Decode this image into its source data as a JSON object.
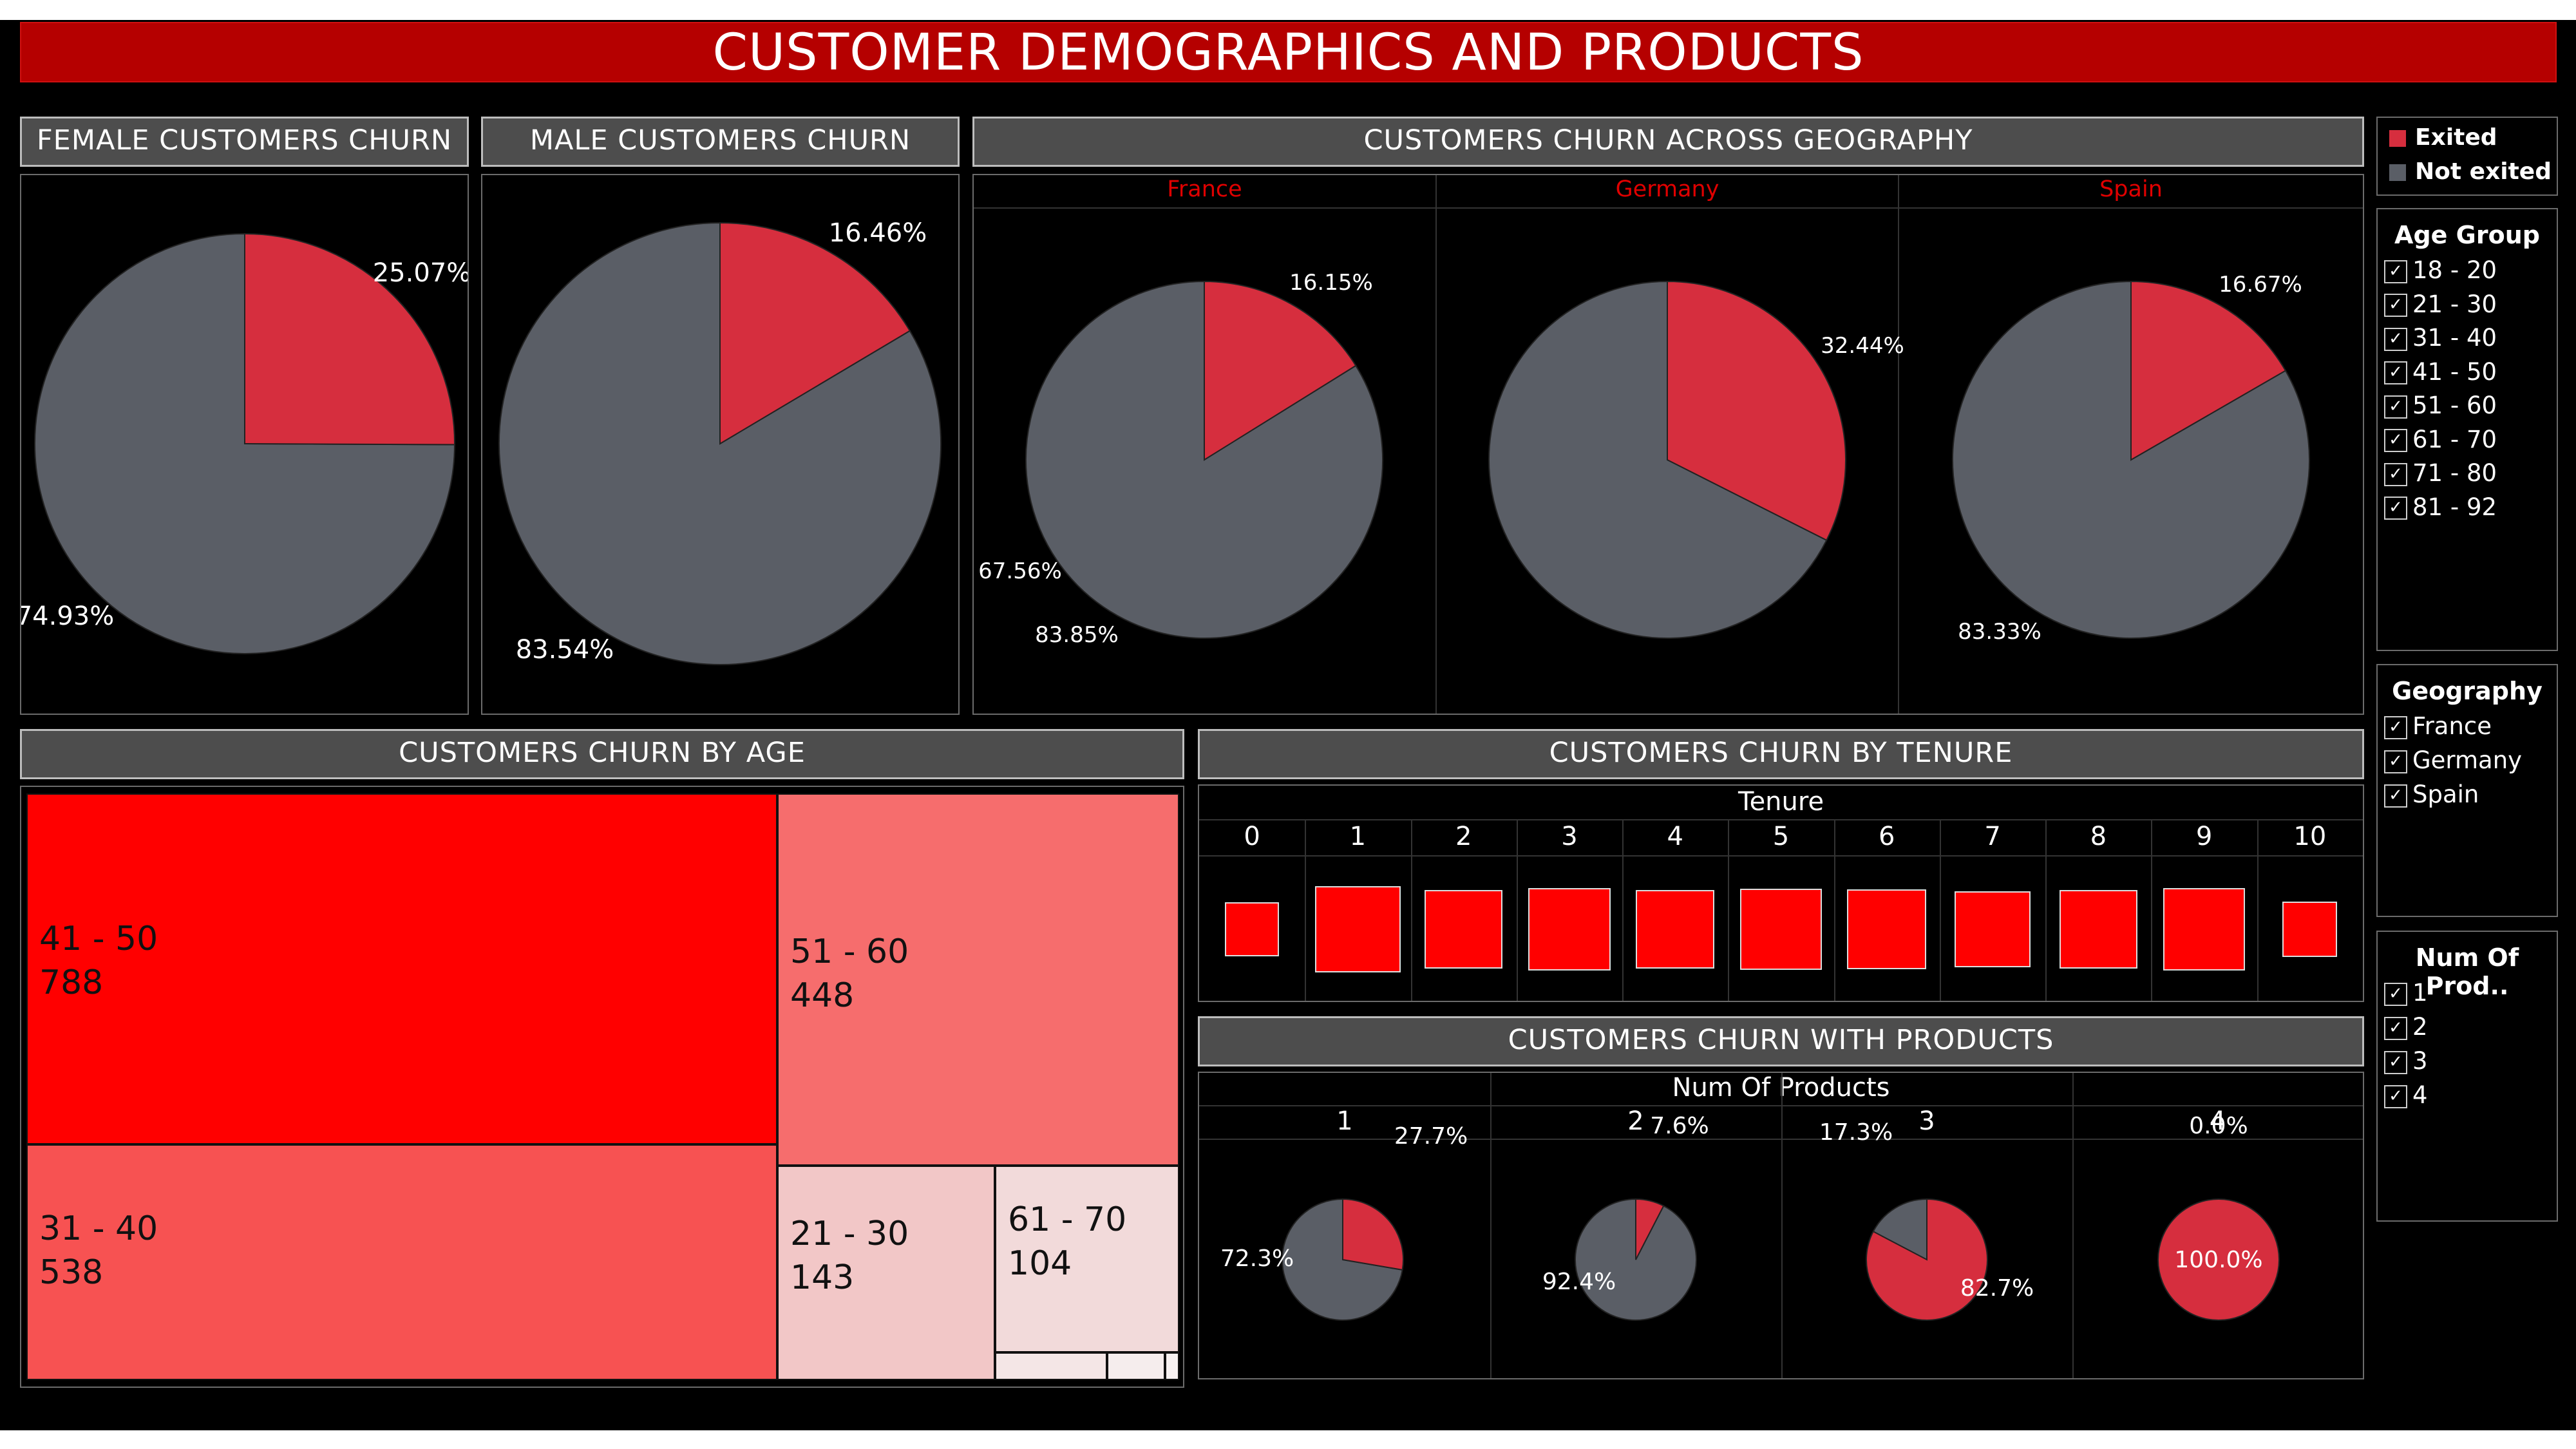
{
  "title": "CUSTOMER DEMOGRAPHICS AND PRODUCTS",
  "colors": {
    "exited": "#d62e3e",
    "not_exited": "#5a5e66",
    "background": "#000000",
    "title_bar": "#b50000"
  },
  "headers": {
    "female": "FEMALE CUSTOMERS CHURN",
    "male": "MALE CUSTOMERS CHURN",
    "geography": "CUSTOMERS CHURN ACROSS GEOGRAPHY",
    "age": "CUSTOMERS CHURN BY AGE",
    "tenure": "CUSTOMERS CHURN BY TENURE",
    "products": "CUSTOMERS CHURN WITH PRODUCTS"
  },
  "legend": {
    "items": [
      {
        "label": "Exited",
        "color": "#d62e3e"
      },
      {
        "label": "Not exited",
        "color": "#5a5e66"
      }
    ]
  },
  "filters": {
    "age_group": {
      "title": "Age Group",
      "items": [
        "18 - 20",
        "21 - 30",
        "31 - 40",
        "41 - 50",
        "51 - 60",
        "61 - 70",
        "71 - 80",
        "81 - 92"
      ]
    },
    "geography": {
      "title": "Geography",
      "items": [
        "France",
        "Germany",
        "Spain"
      ]
    },
    "num_products": {
      "title": "Num Of Prod..",
      "items": [
        "1",
        "2",
        "3",
        "4"
      ]
    }
  },
  "check_glyph": "✓",
  "chart_data": [
    {
      "type": "pie",
      "id": "female",
      "slices": [
        {
          "label": "Exited",
          "value": 25.07,
          "text": "25.07%"
        },
        {
          "label": "Not exited",
          "value": 74.93,
          "text": "74.93%"
        }
      ]
    },
    {
      "type": "pie",
      "id": "male",
      "slices": [
        {
          "label": "Exited",
          "value": 16.46,
          "text": "16.46%"
        },
        {
          "label": "Not exited",
          "value": 83.54,
          "text": "83.54%"
        }
      ]
    },
    {
      "type": "pie",
      "id": "geography",
      "panels": [
        {
          "name": "France",
          "slices": [
            {
              "label": "Exited",
              "value": 16.15,
              "text": "16.15%"
            },
            {
              "label": "Not exited",
              "value": 83.85,
              "text": "83.85%"
            }
          ]
        },
        {
          "name": "Germany",
          "slices": [
            {
              "label": "Exited",
              "value": 32.44,
              "text": "32.44%"
            },
            {
              "label": "Not exited",
              "value": 67.56,
              "text": "67.56%"
            }
          ]
        },
        {
          "name": "Spain",
          "slices": [
            {
              "label": "Exited",
              "value": 16.67,
              "text": "16.67%"
            },
            {
              "label": "Not exited",
              "value": 83.33,
              "text": "83.33%"
            }
          ]
        }
      ]
    },
    {
      "type": "heatmap",
      "id": "age_treemap",
      "items": [
        {
          "label": "41 - 50",
          "value": 788
        },
        {
          "label": "31 - 40",
          "value": 538
        },
        {
          "label": "51 - 60",
          "value": 448
        },
        {
          "label": "21 - 30",
          "value": 143
        },
        {
          "label": "61 - 70",
          "value": 104
        }
      ]
    },
    {
      "type": "table",
      "id": "tenure",
      "column_title": "Tenure",
      "categories": [
        "0",
        "1",
        "2",
        "3",
        "4",
        "5",
        "6",
        "7",
        "8",
        "9",
        "10"
      ],
      "relative_size": [
        0.55,
        0.88,
        0.8,
        0.84,
        0.8,
        0.83,
        0.81,
        0.78,
        0.8,
        0.84,
        0.56
      ]
    },
    {
      "type": "pie",
      "id": "products",
      "column_title": "Num Of Products",
      "panels": [
        {
          "name": "1",
          "slices": [
            {
              "label": "Exited",
              "value": 27.7,
              "text": "27.7%"
            },
            {
              "label": "Not exited",
              "value": 72.3,
              "text": "72.3%"
            }
          ]
        },
        {
          "name": "2",
          "slices": [
            {
              "label": "Exited",
              "value": 7.6,
              "text": "7.6%"
            },
            {
              "label": "Not exited",
              "value": 92.4,
              "text": "92.4%"
            }
          ]
        },
        {
          "name": "3",
          "slices": [
            {
              "label": "Exited",
              "value": 82.7,
              "text": "82.7%"
            },
            {
              "label": "Not exited",
              "value": 17.3,
              "text": "17.3%"
            }
          ]
        },
        {
          "name": "4",
          "slices": [
            {
              "label": "Exited",
              "value": 100.0,
              "text": "100.0%"
            },
            {
              "label": "Not exited",
              "value": 0.0,
              "text": "0.0%"
            }
          ]
        }
      ]
    }
  ]
}
